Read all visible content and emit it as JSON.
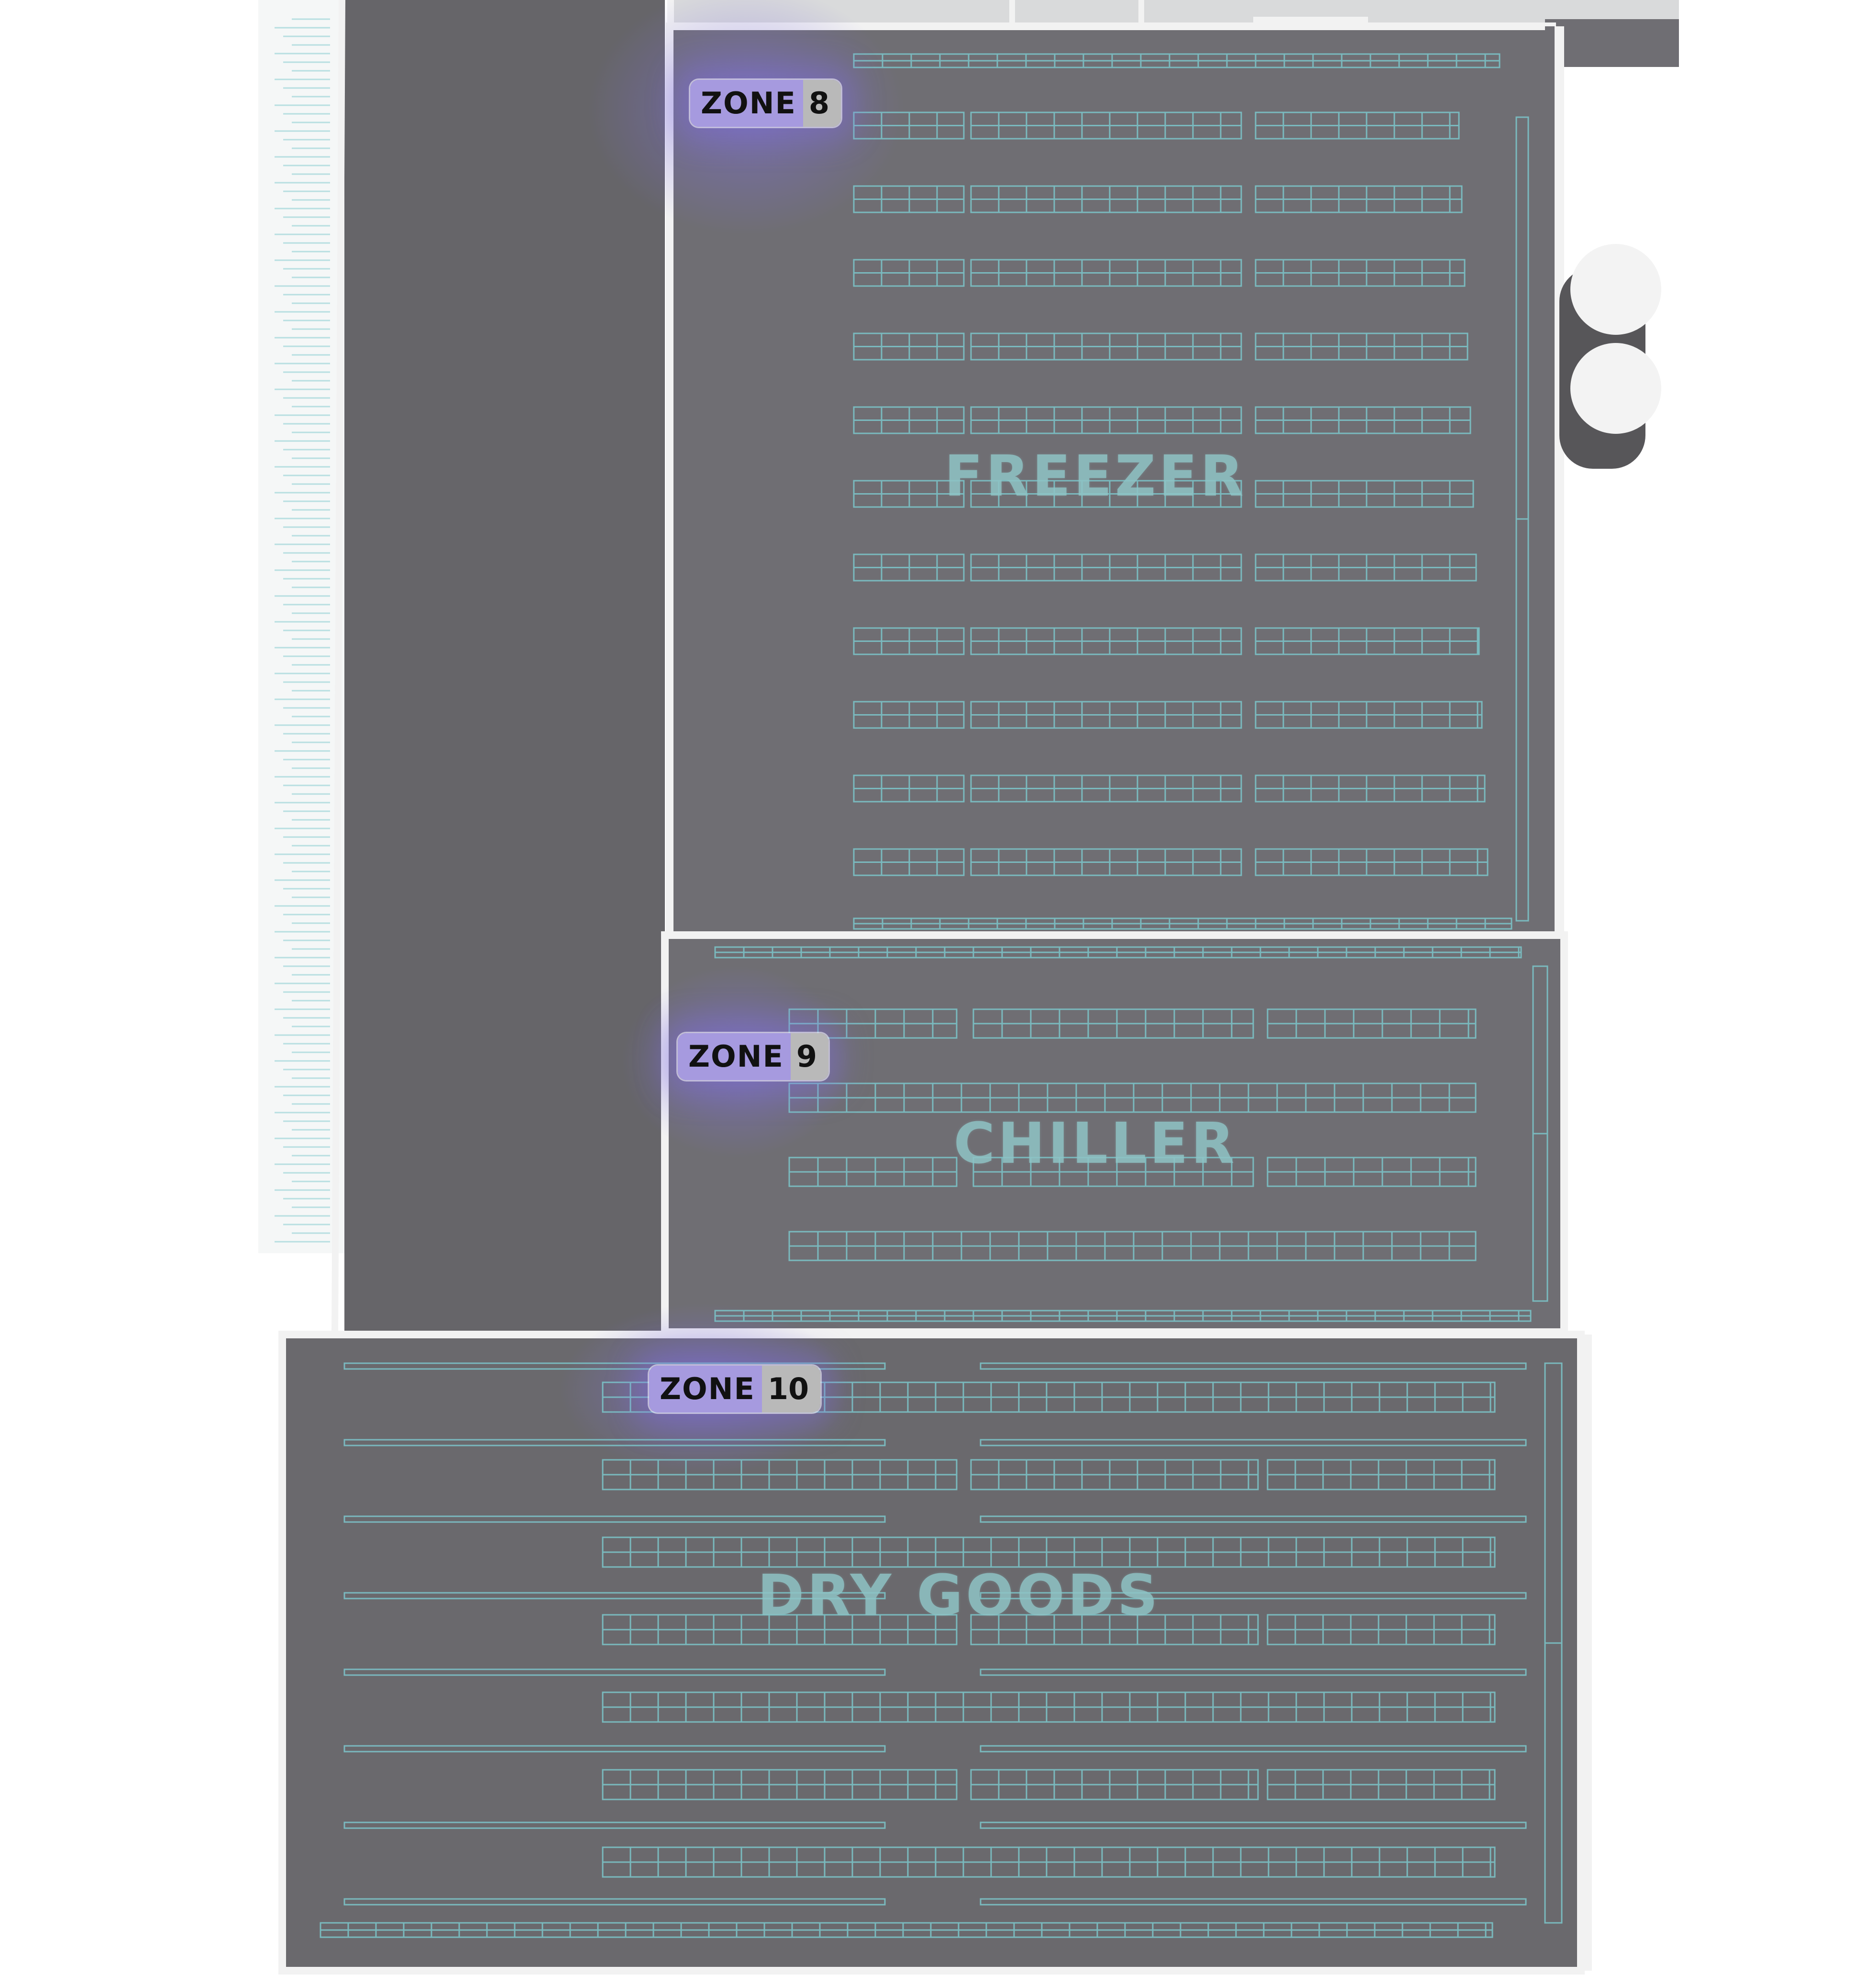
{
  "rooms": {
    "freezer": {
      "label": "FREEZER",
      "zone": {
        "word": "ZONE",
        "number": "8"
      }
    },
    "chiller": {
      "label": "CHILLER",
      "zone": {
        "word": "ZONE",
        "number": "9"
      }
    },
    "dry_goods": {
      "label": "DRY GOODS",
      "zone": {
        "word": "ZONE",
        "number": "10"
      }
    }
  },
  "colors": {
    "floor": "#6f6e73",
    "wall": "#f2f2f2",
    "rack": "#7cc7cc",
    "label": "#8fc4c6",
    "zone_badge": "#a69adf",
    "zone_number_bg": "#b9b9b9",
    "zone_glow": "#7f6fe0"
  }
}
